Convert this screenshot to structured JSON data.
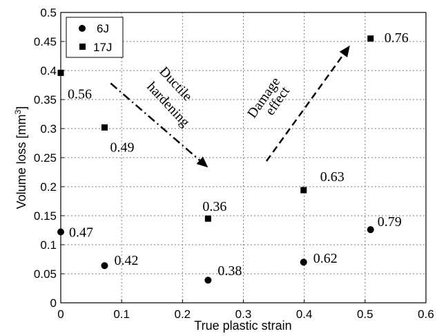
{
  "chart_data": {
    "type": "scatter",
    "xlabel": "True plastic strain",
    "ylabel": "Volume loss [mm",
    "ylabel_superscript": "3",
    "ylabel_suffix": "]",
    "xlim": [
      0,
      0.6
    ],
    "ylim": [
      0,
      0.5
    ],
    "x_ticks": [
      "0",
      "0.1",
      "0.2",
      "0.3",
      "0.4",
      "0.5",
      "0.6"
    ],
    "y_ticks": [
      "0",
      "0.05",
      "0.1",
      "0.15",
      "0.2",
      "0.25",
      "0.3",
      "0.35",
      "0.4",
      "0.45",
      "0.5"
    ],
    "grid": true,
    "legend_position": "top-left",
    "series": [
      {
        "name": "6J",
        "marker": "circle",
        "points": [
          {
            "x": 0.0,
            "y": 0.122,
            "label": "0.47"
          },
          {
            "x": 0.072,
            "y": 0.064,
            "label": "0.42"
          },
          {
            "x": 0.242,
            "y": 0.039,
            "label": "0.38"
          },
          {
            "x": 0.399,
            "y": 0.07,
            "label": "0.62"
          },
          {
            "x": 0.509,
            "y": 0.126,
            "label": "0.79"
          }
        ]
      },
      {
        "name": "17J",
        "marker": "square",
        "points": [
          {
            "x": 0.0,
            "y": 0.396,
            "label": "0.56"
          },
          {
            "x": 0.072,
            "y": 0.302,
            "label": "0.49"
          },
          {
            "x": 0.242,
            "y": 0.145,
            "label": "0.36"
          },
          {
            "x": 0.399,
            "y": 0.194,
            "label": "0.63"
          },
          {
            "x": 0.509,
            "y": 0.455,
            "label": "0.76"
          }
        ]
      }
    ],
    "annotations": [
      {
        "name": "ductile",
        "lines": [
          "Ductile",
          "hardening"
        ],
        "arrow": {
          "from": [
            0.082,
            0.378
          ],
          "to": [
            0.242,
            0.233
          ],
          "style": "dash-dot"
        }
      },
      {
        "name": "damage",
        "lines": [
          "Damage",
          "effect"
        ],
        "arrow": {
          "from": [
            0.338,
            0.244
          ],
          "to": [
            0.475,
            0.443
          ],
          "style": "dashed"
        }
      }
    ]
  }
}
